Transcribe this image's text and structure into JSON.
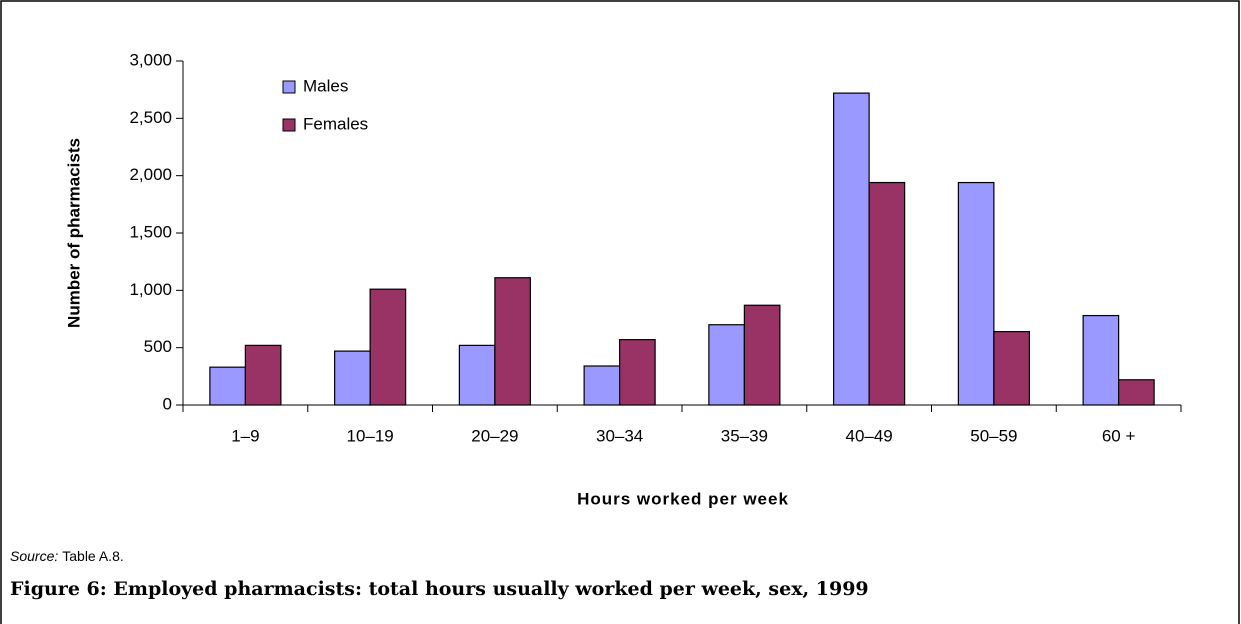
{
  "chart_data": {
    "type": "bar",
    "categories": [
      "1–9",
      "10–19",
      "20–29",
      "30–34",
      "35–39",
      "40–49",
      "50–59",
      "60 +"
    ],
    "series": [
      {
        "name": "Males",
        "color": "#9999ff",
        "values": [
          330,
          470,
          520,
          340,
          700,
          2720,
          1940,
          780
        ]
      },
      {
        "name": "Females",
        "color": "#993366",
        "values": [
          520,
          1010,
          1110,
          570,
          870,
          1940,
          640,
          220
        ]
      }
    ],
    "ylim": [
      0,
      3000
    ],
    "yticks": [
      0,
      500,
      {
        "value": 1000,
        "label": "1,000"
      },
      {
        "value": 1500,
        "label": "1,500"
      },
      {
        "value": 2000,
        "label": "2,000"
      },
      {
        "value": 2500,
        "label": "2,500"
      },
      {
        "value": 3000,
        "label": "3,000"
      }
    ],
    "ylabel": "Number of pharmacists",
    "xlabel": "Hours worked per week",
    "legend": "top-left",
    "source_label": "Source:",
    "source": "Table A.8.",
    "caption": "Figure 6: Employed pharmacists: total hours usually worked per week, sex, 1999"
  }
}
